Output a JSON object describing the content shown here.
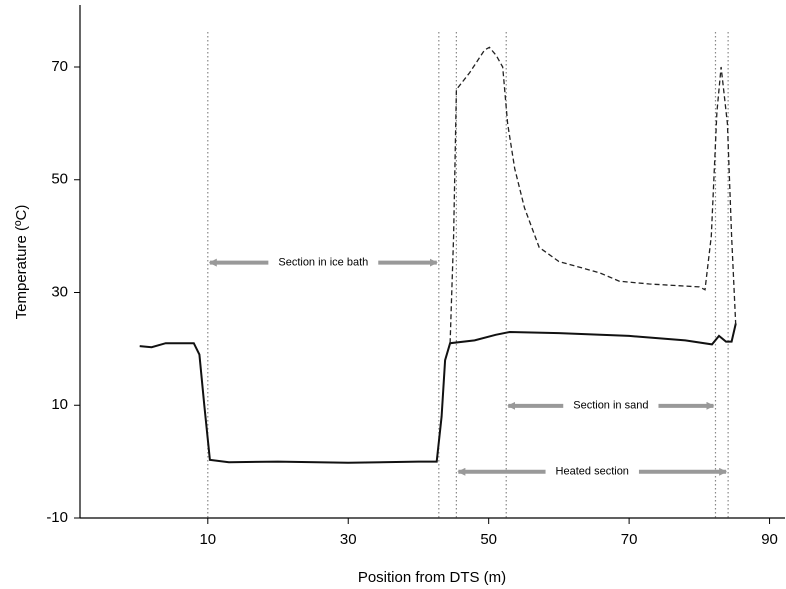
{
  "chart_data": {
    "type": "line",
    "xlabel": "Position from DTS (m)",
    "ylabel": "Temperature (ºC)",
    "xlim": [
      -8.2,
      92.2
    ],
    "ylim": [
      -10,
      81
    ],
    "xticks": [
      10,
      30,
      50,
      70,
      90
    ],
    "yticks": [
      -10,
      10,
      30,
      50,
      70
    ],
    "series": [
      {
        "color": "#111111",
        "style": "solid",
        "x": [
          0.3,
          2,
          4,
          8,
          8.8,
          9.5,
          10.3,
          13,
          20,
          30,
          40,
          42.6,
          43.3,
          43.8,
          44.5,
          48,
          51,
          53,
          60,
          70,
          78,
          81.8,
          82.8,
          83.8,
          84.6,
          85.2
        ],
        "values": [
          20.5,
          20.3,
          21,
          21,
          19,
          10,
          0.3,
          -0.1,
          0,
          -0.2,
          0,
          0,
          8,
          18,
          21,
          21.5,
          22.5,
          23,
          22.8,
          22.3,
          21.5,
          20.8,
          22.3,
          21.3,
          21.3,
          24.5
        ]
      },
      {
        "color": "#222222",
        "style": "dashed",
        "x": [
          44.5,
          45,
          45.4,
          47.3,
          49.4,
          50.1,
          51.1,
          52,
          52.7,
          53.7,
          55.1,
          57.2,
          60,
          65.8,
          68.6,
          72.9,
          80,
          80.8,
          81.7,
          82.5,
          83.1,
          84,
          84.6,
          85.2
        ],
        "values": [
          21,
          40,
          66,
          69,
          73,
          73.5,
          72,
          70,
          60,
          52,
          45,
          38,
          35.5,
          33.5,
          32,
          31.5,
          31,
          30.5,
          40,
          62,
          70,
          60,
          40,
          24
        ]
      }
    ],
    "reference_lines": [
      10,
      42.9,
      45.4,
      52.5,
      82.3,
      84.1
    ],
    "annotations": [
      {
        "text": "Section in ice bath",
        "x": [
          10,
          42.9
        ],
        "y": 35.3
      },
      {
        "text": "Section in sand",
        "x": [
          52.5,
          82.3
        ],
        "y": 9.9
      },
      {
        "text": "Heated section",
        "x": [
          45.4,
          84.1
        ],
        "y": -1.8
      }
    ]
  }
}
